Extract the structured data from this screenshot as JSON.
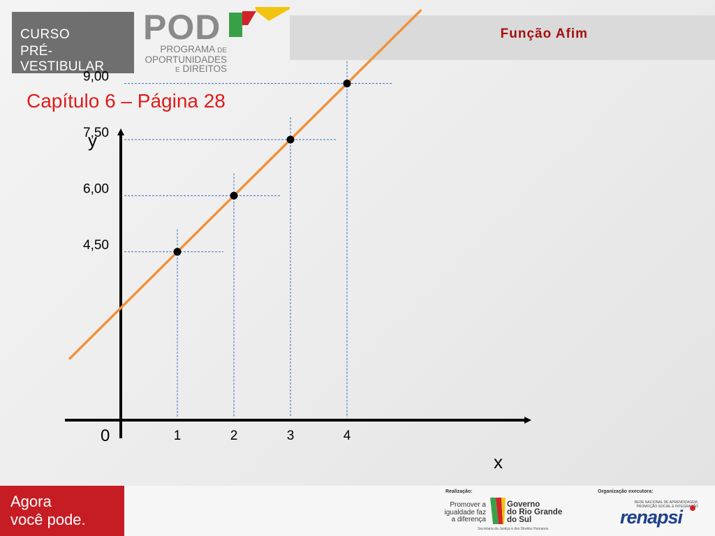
{
  "header": {
    "curso_line1": "CURSO",
    "curso_line2": "PRÉ-VESTIBULAR",
    "pod_logo": "POD",
    "pod_sub_line1": "PROGRAMA",
    "pod_sub_line1b": "DE",
    "pod_sub_line2": "OPORTUNIDADES",
    "pod_sub_line3a": "E",
    "pod_sub_line3b": "DIREITOS",
    "title": "Função Afim"
  },
  "chapter_title": "Capítulo  6 – Página 28",
  "chart_data": {
    "type": "line",
    "xlabel": "x",
    "ylabel": "y",
    "origin_label": "0",
    "x_ticks": [
      "1",
      "2",
      "3",
      "4"
    ],
    "y_ticks": [
      "4,50",
      "6,00",
      "7,50",
      "9,00"
    ],
    "points": [
      {
        "x": 1,
        "y": 4.5
      },
      {
        "x": 2,
        "y": 6.0
      },
      {
        "x": 3,
        "y": 7.5
      },
      {
        "x": 4,
        "y": 9.0
      }
    ],
    "line": {
      "slope": 1.5,
      "intercept": 3.0
    },
    "line_color": "#f0923a",
    "guide_color": "#3a6fc0",
    "point_color": "#000000"
  },
  "footer": {
    "agora_line1": "Agora",
    "agora_line2": "você pode.",
    "realizacao_label": "Realização:",
    "promover_line1": "Promover a",
    "promover_line2": "igualdade faz",
    "promover_line3": "a diferença",
    "gov_line1": "Governo",
    "gov_line2": "do Rio Grande",
    "gov_line3": "do Sul",
    "secretaria": "Secretaria da Justiça e dos Direitos Humanos",
    "org_label": "Organização executora:",
    "renapsi_small_line1": "REDE NACIONAL DE APRENDIZAGEM,",
    "renapsi_small_line2": "PROMOÇÃO SOCIAL E INTEGRAÇÃO",
    "renapsi": "renapsi"
  },
  "colors": {
    "brand_red": "#c61d24",
    "title_red": "#a51010",
    "chapter_red": "#e01b1b"
  }
}
